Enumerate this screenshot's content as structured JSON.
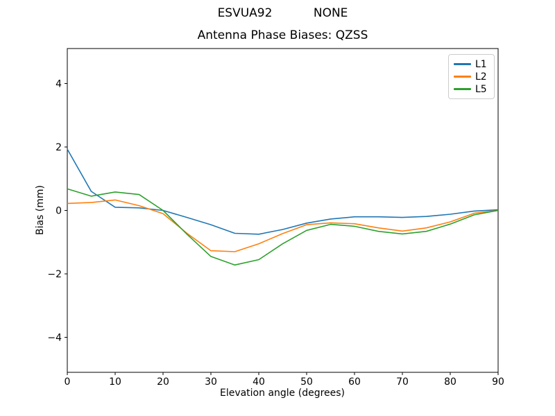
{
  "chart_data": {
    "type": "line",
    "suptitle": "ESVUA92           NONE",
    "title": "Antenna Phase Biases: QZSS",
    "xlabel": "Elevation angle (degrees)",
    "ylabel": "Bias (mm)",
    "xlim": [
      0,
      90
    ],
    "ylim": [
      -5.1,
      5.1
    ],
    "grid": false,
    "legend_position": "upper right",
    "x_ticks": [
      0,
      10,
      20,
      30,
      40,
      50,
      60,
      70,
      80,
      90
    ],
    "x_tick_labels": [
      "0",
      "10",
      "20",
      "30",
      "40",
      "50",
      "60",
      "70",
      "80",
      "90"
    ],
    "y_ticks": [
      -4,
      -2,
      0,
      2,
      4
    ],
    "y_tick_labels": [
      "−4",
      "−2",
      "0",
      "2",
      "4"
    ],
    "x": [
      0,
      5,
      10,
      15,
      20,
      25,
      30,
      35,
      40,
      45,
      50,
      55,
      60,
      65,
      70,
      75,
      80,
      85,
      90
    ],
    "series": [
      {
        "name": "L1",
        "color": "#1f77b4",
        "values": [
          1.93,
          0.6,
          0.1,
          0.08,
          0.0,
          -0.22,
          -0.45,
          -0.72,
          -0.75,
          -0.6,
          -0.4,
          -0.27,
          -0.2,
          -0.2,
          -0.22,
          -0.19,
          -0.12,
          -0.02,
          0.02
        ]
      },
      {
        "name": "L2",
        "color": "#ff7f0e",
        "values": [
          0.22,
          0.25,
          0.33,
          0.15,
          -0.1,
          -0.72,
          -1.27,
          -1.3,
          -1.05,
          -0.73,
          -0.45,
          -0.39,
          -0.42,
          -0.55,
          -0.65,
          -0.55,
          -0.36,
          -0.09,
          0.0
        ]
      },
      {
        "name": "L5",
        "color": "#2ca02c",
        "values": [
          0.68,
          0.45,
          0.58,
          0.5,
          0.0,
          -0.75,
          -1.45,
          -1.72,
          -1.55,
          -1.05,
          -0.63,
          -0.44,
          -0.5,
          -0.66,
          -0.74,
          -0.66,
          -0.43,
          -0.14,
          0.0
        ]
      }
    ]
  }
}
